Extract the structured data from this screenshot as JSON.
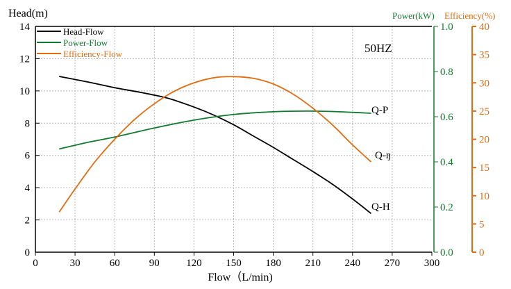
{
  "chart_data": {
    "type": "line",
    "title": "",
    "annotation": "50HZ",
    "xlabel": "Flow（L/min)",
    "ylabel_left": "Head(m)",
    "ylabel_right1": "Power(kW)",
    "ylabel_right2": "Efficiency(%)",
    "xlim": [
      0,
      300
    ],
    "ylim_left": [
      0,
      14
    ],
    "ylim_right1": [
      0,
      1.0
    ],
    "ylim_right2": [
      0,
      40
    ],
    "x_ticks": [
      "0",
      "30",
      "60",
      "90",
      "120",
      "150",
      "180",
      "210",
      "240",
      "270",
      "300"
    ],
    "y_left_ticks": [
      "0",
      "2",
      "4",
      "6",
      "8",
      "10",
      "12",
      "14"
    ],
    "y_right1_ticks": [
      "0.0",
      "0.2",
      "0.4",
      "0.6",
      "0.8",
      "1.0"
    ],
    "y_right2_ticks": [
      "0",
      "5",
      "10",
      "15",
      "20",
      "25",
      "30",
      "35",
      "40"
    ],
    "grid": true,
    "legend_position": "top-left",
    "series": [
      {
        "name": "Head-Flow",
        "label": "Q-H",
        "axis": "left",
        "color": "#000000",
        "x": [
          18,
          40,
          60,
          80,
          100,
          120,
          135,
          150,
          165,
          180,
          195,
          210,
          225,
          240,
          254
        ],
        "y": [
          10.9,
          10.55,
          10.2,
          9.9,
          9.55,
          9.0,
          8.5,
          7.9,
          7.2,
          6.5,
          5.75,
          5.0,
          4.2,
          3.3,
          2.4
        ]
      },
      {
        "name": "Power-Flow",
        "label": "Q-P",
        "axis": "right1",
        "color": "#127a2e",
        "x": [
          18,
          40,
          60,
          90,
          120,
          150,
          180,
          205,
          230,
          254
        ],
        "y": [
          0.457,
          0.487,
          0.51,
          0.55,
          0.585,
          0.61,
          0.622,
          0.625,
          0.622,
          0.615
        ]
      },
      {
        "name": "Efficiency-Flow",
        "label": "Q-ŋ",
        "axis": "right2",
        "color": "#e06c10",
        "x": [
          18,
          30,
          45,
          60,
          75,
          90,
          105,
          120,
          135,
          150,
          165,
          180,
          195,
          210,
          225,
          240,
          254
        ],
        "y": [
          7.1,
          11.2,
          16.0,
          20.0,
          23.5,
          26.3,
          28.5,
          30.0,
          30.9,
          31.1,
          30.8,
          29.8,
          28.0,
          25.5,
          22.5,
          19.0,
          16.0
        ]
      }
    ]
  }
}
